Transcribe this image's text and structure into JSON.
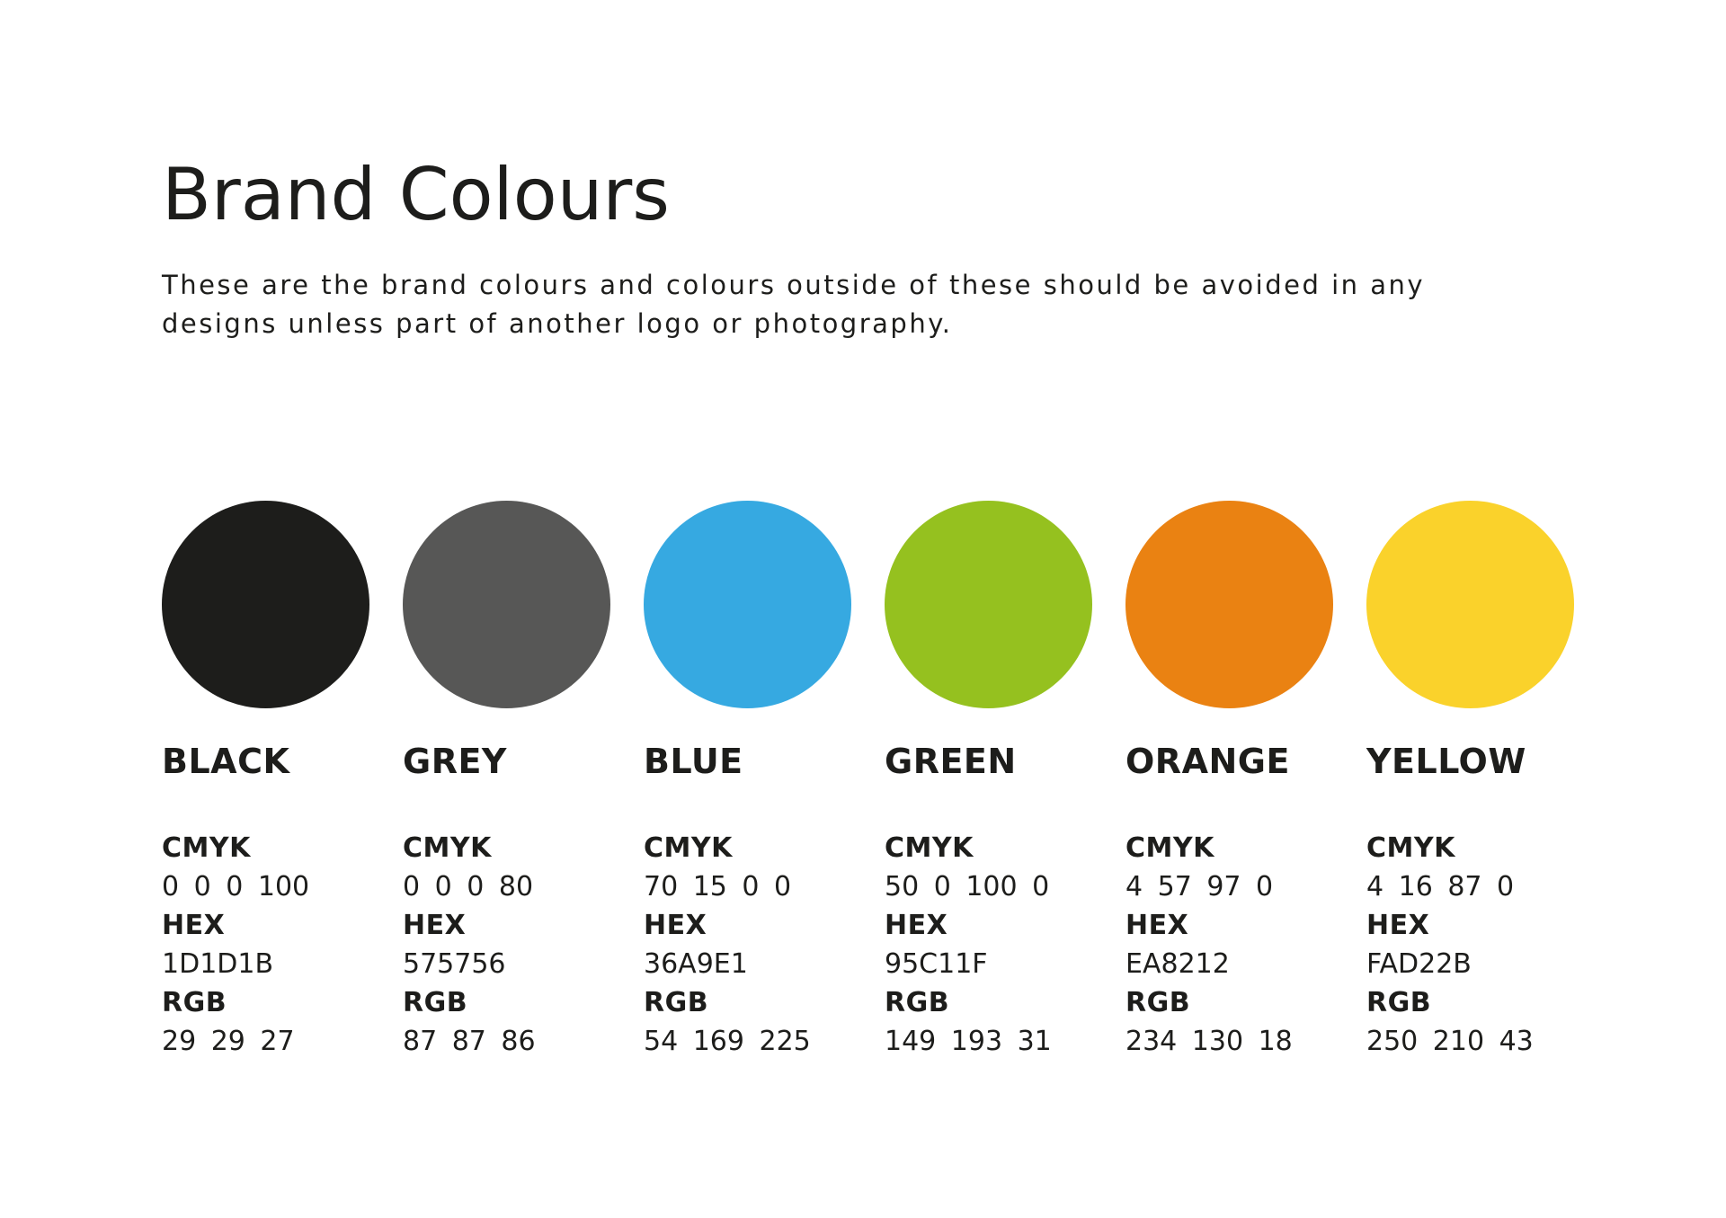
{
  "page": {
    "title": "Brand Colours",
    "description": "These are the brand colours and colours outside of these should be avoided in any designs unless part of another logo or photography.",
    "background": "#FFFFFF",
    "text_color": "#1D1D1B"
  },
  "labels": {
    "cmyk": "CMYK",
    "hex": "HEX",
    "rgb": "RGB"
  },
  "swatches": [
    {
      "name": "BLACK",
      "color": "#1D1D1B",
      "cmyk": "0 0 0 100",
      "hex": "1D1D1B",
      "rgb": "29 29 27"
    },
    {
      "name": "GREY",
      "color": "#575756",
      "cmyk": "0 0 0 80",
      "hex": "575756",
      "rgb": "87 87 86"
    },
    {
      "name": "BLUE",
      "color": "#36A9E1",
      "cmyk": "70 15 0 0",
      "hex": "36A9E1",
      "rgb": "54 169 225"
    },
    {
      "name": "GREEN",
      "color": "#95C11F",
      "cmyk": "50 0 100 0",
      "hex": "95C11F",
      "rgb": "149 193 31"
    },
    {
      "name": "ORANGE",
      "color": "#EA8212",
      "cmyk": "4 57 97 0",
      "hex": "EA8212",
      "rgb": "234 130 18"
    },
    {
      "name": "YELLOW",
      "color": "#FAD22B",
      "cmyk": "4 16 87 0",
      "hex": "FAD22B",
      "rgb": "250 210 43"
    }
  ]
}
